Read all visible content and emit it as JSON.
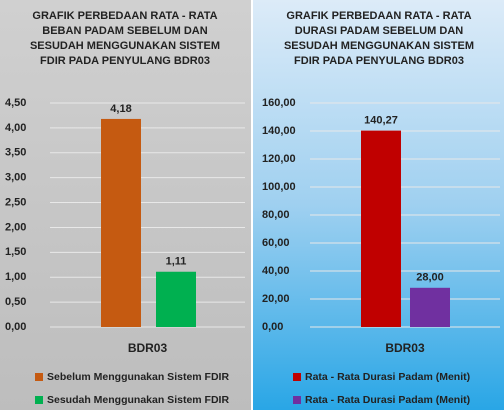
{
  "chart_data": [
    {
      "type": "bar",
      "title": [
        "GRAFIK PERBEDAAN RATA - RATA",
        "BEBAN PADAM SEBELUM DAN",
        "SESUDAH MENGGUNAKAN SISTEM",
        "FDIR PADA PENYULANG BDR03"
      ],
      "categories": [
        "BDR03"
      ],
      "series": [
        {
          "name": "Sebelum Menggunakan Sistem FDIR",
          "color": "#c55a11",
          "values": [
            4.18
          ],
          "value_labels": [
            "4,18"
          ]
        },
        {
          "name": "Sesudah Menggunakan Sistem FDIR",
          "color": "#00b050",
          "values": [
            1.11
          ],
          "value_labels": [
            "1,11"
          ]
        }
      ],
      "ylim": [
        0,
        4.5
      ],
      "yticks": [
        {
          "value": 0,
          "label": "0,00"
        },
        {
          "value": 0.5,
          "label": "0,50"
        },
        {
          "value": 1,
          "label": "1,00"
        },
        {
          "value": 1.5,
          "label": "1,50"
        },
        {
          "value": 2,
          "label": "2,00"
        },
        {
          "value": 2.5,
          "label": "2,50"
        },
        {
          "value": 3,
          "label": "3,00"
        },
        {
          "value": 3.5,
          "label": "3,50"
        },
        {
          "value": 4,
          "label": "4,00"
        },
        {
          "value": 4.5,
          "label": "4,50"
        }
      ],
      "grid": true
    },
    {
      "type": "bar",
      "title": [
        "GRAFIK PERBEDAAN RATA - RATA",
        "DURASI PADAM SEBELUM DAN",
        "SESUDAH MENGGUNAKAN SISTEM",
        "FDIR PADA PENYULANG BDR03"
      ],
      "categories": [
        "BDR03"
      ],
      "series": [
        {
          "name": "Rata - Rata Durasi Padam (Menit)",
          "color": "#c00000",
          "values": [
            140.27
          ],
          "value_labels": [
            "140,27"
          ]
        },
        {
          "name": "Rata - Rata Durasi Padam (Menit)",
          "color": "#7030a0",
          "values": [
            28
          ],
          "value_labels": [
            "28,00"
          ]
        }
      ],
      "ylim": [
        0,
        160
      ],
      "yticks": [
        {
          "value": 0,
          "label": "0,00"
        },
        {
          "value": 20,
          "label": "20,00"
        },
        {
          "value": 40,
          "label": "40,00"
        },
        {
          "value": 60,
          "label": "60,00"
        },
        {
          "value": 80,
          "label": "80,00"
        },
        {
          "value": 100,
          "label": "100,00"
        },
        {
          "value": 120,
          "label": "120,00"
        },
        {
          "value": 140,
          "label": "140,00"
        },
        {
          "value": 160,
          "label": "160,00"
        }
      ],
      "grid": true
    }
  ]
}
